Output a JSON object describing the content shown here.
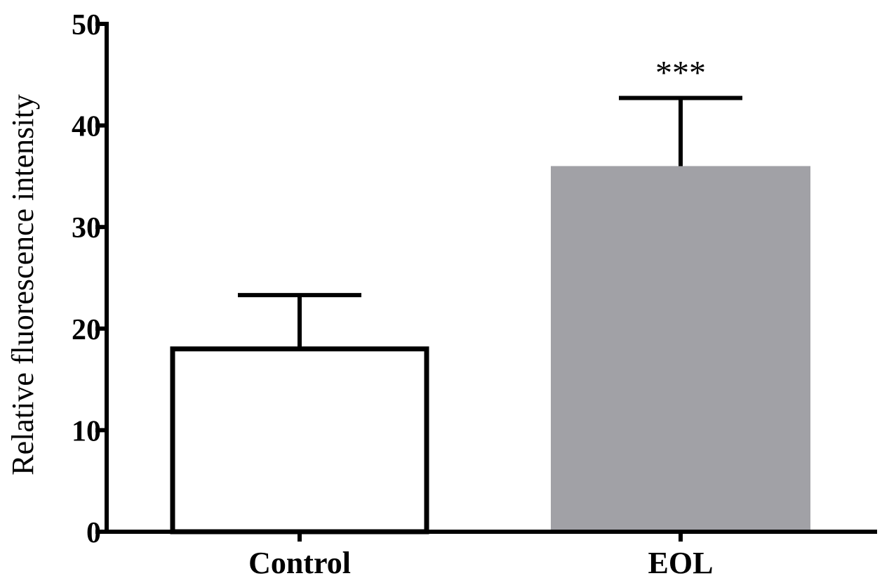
{
  "chart_data": {
    "type": "bar",
    "title": "",
    "xlabel": "",
    "ylabel": "Relative fluorescence intensity",
    "ylim": [
      0,
      50
    ],
    "yticks": [
      0,
      10,
      20,
      30,
      40,
      50
    ],
    "grid": false,
    "categories": [
      "Control",
      "EOL"
    ],
    "values": [
      18,
      36
    ],
    "errors": [
      5.3,
      6.7
    ],
    "bar_colors": [
      "#ffffff",
      "#a1a1a6"
    ],
    "bar_edge_colors": [
      "#000000",
      "#a1a1a6"
    ],
    "annotations": [
      {
        "category": "EOL",
        "text": "***"
      }
    ]
  }
}
